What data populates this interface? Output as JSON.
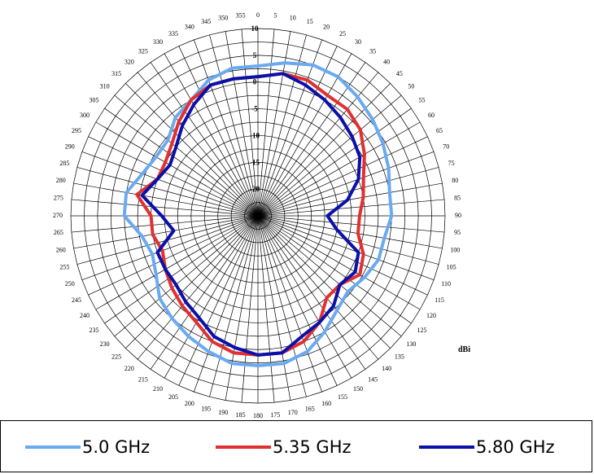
{
  "chart_data": {
    "type": "polar-line",
    "title": "",
    "unit_label": "dBi",
    "angle_ticks": [
      0,
      5,
      10,
      15,
      20,
      25,
      30,
      35,
      40,
      45,
      50,
      55,
      60,
      65,
      70,
      75,
      80,
      85,
      90,
      95,
      100,
      105,
      110,
      115,
      120,
      125,
      130,
      135,
      140,
      145,
      150,
      155,
      160,
      165,
      170,
      175,
      180,
      185,
      190,
      195,
      200,
      205,
      210,
      215,
      220,
      225,
      230,
      235,
      240,
      245,
      250,
      255,
      260,
      265,
      270,
      275,
      280,
      285,
      290,
      295,
      300,
      305,
      310,
      315,
      320,
      325,
      330,
      335,
      340,
      345,
      350,
      355
    ],
    "angle_labels": [
      "0",
      "5",
      "10",
      "15",
      "20",
      "25",
      "30",
      "35",
      "40",
      "45",
      "50",
      "55",
      "60",
      "65",
      "70",
      "75",
      "80",
      "85",
      "90",
      "95",
      "100",
      "105",
      "110",
      "115",
      "120",
      "125",
      "130",
      "135",
      "140",
      "145",
      "150",
      "155",
      "160",
      "165",
      "170",
      "175",
      "180",
      "185",
      "190",
      "195",
      "200",
      "205",
      "210",
      "215",
      "220",
      "225",
      "230",
      "235",
      "240",
      "245",
      "250",
      "255",
      "260",
      "265",
      "270",
      "275",
      "280",
      "285",
      "290",
      "295",
      "300",
      "305",
      "310",
      "315",
      "320",
      "325",
      "330",
      "335",
      "340",
      "345",
      "350",
      "355"
    ],
    "radial_ticks": [
      -20,
      -15,
      -10,
      -5,
      0,
      5,
      10
    ],
    "radial_labels": [
      "-20",
      "-15",
      "-10",
      "-5",
      "0",
      "5",
      "10"
    ],
    "rlim": [
      -25,
      10
    ],
    "grid": true,
    "legend_position": "bottom",
    "series": [
      {
        "name": "5.0 GHz",
        "color": "#6aaaf0",
        "angles": [
          0,
          10,
          20,
          30,
          40,
          50,
          60,
          70,
          80,
          90,
          100,
          110,
          120,
          130,
          140,
          150,
          160,
          170,
          180,
          190,
          200,
          210,
          220,
          230,
          240,
          250,
          260,
          270,
          280,
          290,
          300,
          310,
          320,
          330,
          340,
          350
        ],
        "values": [
          3,
          4,
          5,
          5,
          4,
          3,
          2,
          1,
          0,
          0,
          -1,
          -1,
          -2,
          -3,
          -2,
          0,
          2,
          3,
          3,
          3,
          2,
          1,
          0,
          -1,
          -3,
          -4,
          -3,
          0,
          0,
          -2,
          -3,
          -3,
          -1,
          0,
          2,
          3
        ]
      },
      {
        "name": "5.35 GHz",
        "color": "#e03030",
        "angles": [
          0,
          10,
          20,
          30,
          40,
          50,
          60,
          70,
          80,
          90,
          100,
          110,
          120,
          130,
          140,
          150,
          160,
          170,
          180,
          190,
          200,
          210,
          220,
          230,
          240,
          250,
          260,
          270,
          280,
          290,
          300,
          310,
          320,
          330,
          340,
          350
        ],
        "values": [
          1,
          2,
          2,
          1,
          1,
          0,
          -2,
          -4,
          -5,
          -6,
          -6,
          -4,
          -3,
          -5,
          -5,
          -2,
          0,
          1,
          1,
          1,
          0,
          -2,
          -3,
          -4,
          -5,
          -6,
          -5,
          -5,
          -2,
          -5,
          -5,
          -4,
          -2,
          0,
          1,
          1
        ]
      },
      {
        "name": "5.80 GHz",
        "color": "#0a10a8",
        "angles": [
          0,
          10,
          20,
          30,
          40,
          50,
          60,
          70,
          80,
          90,
          100,
          110,
          120,
          130,
          140,
          150,
          160,
          170,
          180,
          190,
          200,
          210,
          220,
          230,
          240,
          250,
          260,
          270,
          280,
          290,
          300,
          310,
          320,
          330,
          340,
          350
        ],
        "values": [
          1,
          2,
          1,
          0,
          -1,
          -2,
          -3,
          -5,
          -8,
          -12,
          -10,
          -5,
          -4,
          -5,
          -3,
          -2,
          -1,
          1,
          1,
          0,
          -1,
          -3,
          -4,
          -5,
          -5,
          -5,
          -9,
          -7,
          -3,
          -5,
          -6,
          -5,
          -3,
          -1,
          1,
          1
        ]
      }
    ]
  }
}
